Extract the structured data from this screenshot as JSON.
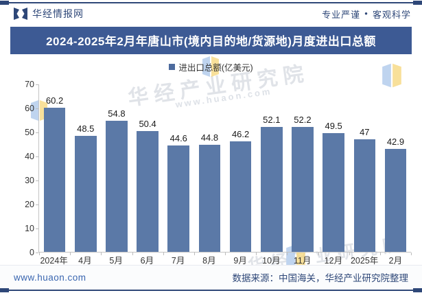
{
  "header": {
    "brand": "华经情报网",
    "slogan_left": "专业严谨",
    "slogan_separator": "●",
    "slogan_right": "客观科学"
  },
  "title": "2024-2025年2月年唐山市(境内目的地/货源地)月度进出口总额",
  "legend": {
    "label": "进出口总额(亿美元)"
  },
  "chart_data": {
    "type": "bar",
    "title": "2024-2025年2月年唐山市(境内目的地/货源地)月度进出口总额",
    "legend_entries": [
      "进出口总额(亿美元)"
    ],
    "legend_position": "top-center",
    "categories": [
      "2024年\n3月",
      "4月",
      "5月",
      "6月",
      "7月",
      "8月",
      "9月",
      "10月",
      "11月",
      "12月",
      "2025年\n1月",
      "2月"
    ],
    "values": [
      60.2,
      48.5,
      54.8,
      50.4,
      44.6,
      44.8,
      46.2,
      52.1,
      52.2,
      49.5,
      47,
      42.9
    ],
    "xlabel": "",
    "ylabel": "",
    "ylim": [
      0,
      70
    ],
    "yticks": [
      0,
      10,
      20,
      30,
      40,
      50,
      60,
      70
    ],
    "grid": false,
    "bar_color": "#5b79a7"
  },
  "watermarks": {
    "text": "华经产业研究院",
    "url": "www.huaon.com"
  },
  "footer": {
    "website": "www.huaon.com",
    "source": "数据来源：中国海关，华经产业研究院整理"
  },
  "colors": {
    "accent": "#2e4778",
    "banner": "#3d5a94",
    "bar": "#5b79a7",
    "link": "#3a66b0"
  }
}
